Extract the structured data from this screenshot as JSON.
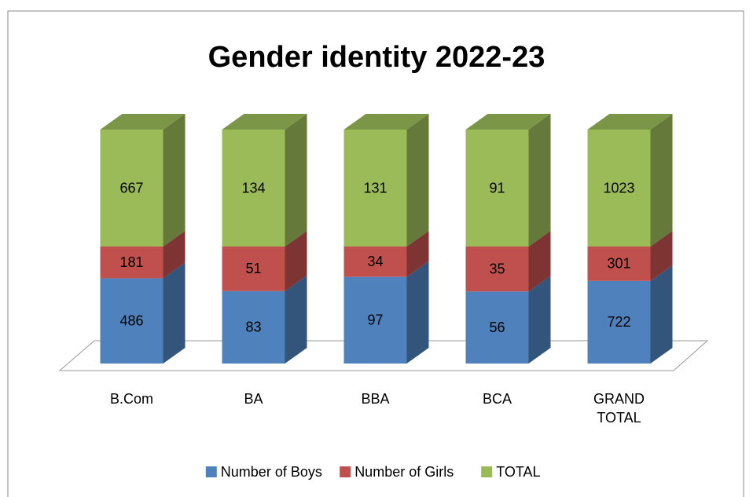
{
  "chart_data": {
    "type": "bar",
    "stacking": "percent",
    "three_d": true,
    "title": "Gender identity 2022-23",
    "categories": [
      "B.Com",
      "BA",
      "BBA",
      "BCA",
      "GRAND TOTAL"
    ],
    "series": [
      {
        "name": "Number of Boys",
        "color": "#4f81bd",
        "values": [
          486,
          83,
          97,
          56,
          722
        ]
      },
      {
        "name": "Number of Girls",
        "color": "#c0504d",
        "values": [
          181,
          51,
          34,
          35,
          301
        ]
      },
      {
        "name": "TOTAL",
        "color": "#9bbb59",
        "values": [
          667,
          134,
          131,
          91,
          1023
        ]
      }
    ],
    "legend": "bottom"
  }
}
